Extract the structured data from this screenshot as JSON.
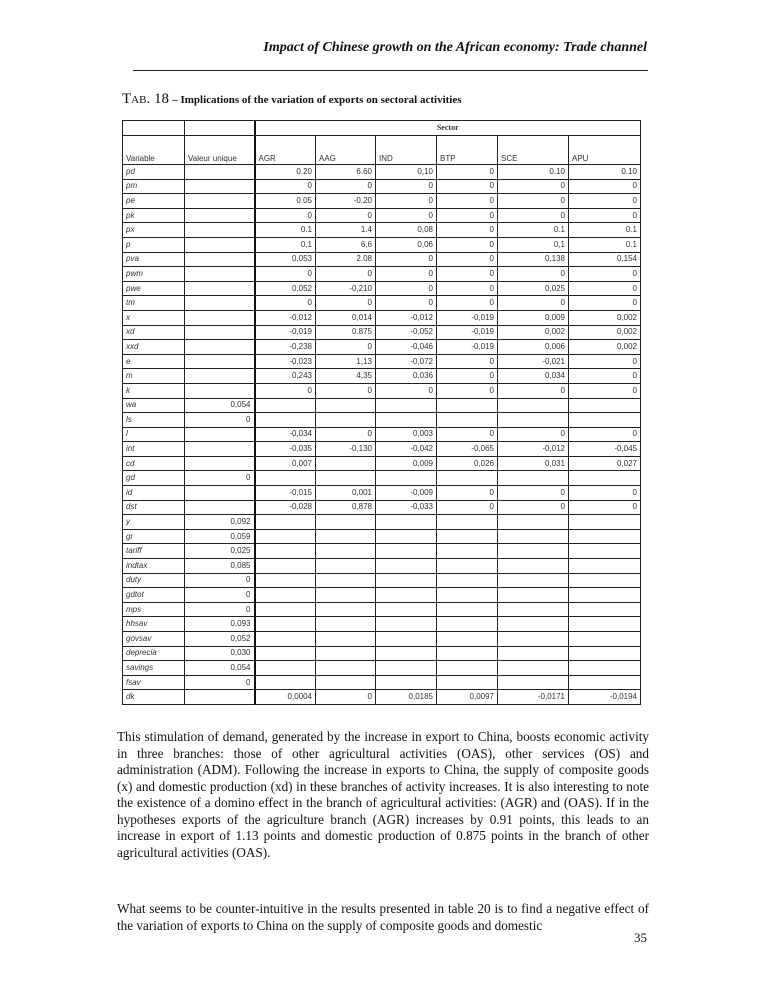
{
  "running_head": "Impact of Chinese growth on the African economy: Trade channel",
  "caption": {
    "tab": "Tab. 18",
    "text": "– Implications of the variation of exports on sectoral activities"
  },
  "table": {
    "group_header": "Sector",
    "headers": [
      "Variable",
      "Valeur unique",
      "AGR",
      "AAG",
      "IND",
      "BTP",
      "SCE",
      "APU"
    ],
    "rows": [
      [
        "pd",
        "",
        "0.20",
        "6.60",
        "0,10",
        "0",
        "0,10",
        "0.10"
      ],
      [
        "pm",
        "",
        "0",
        "0",
        "0",
        "0",
        "0",
        "0"
      ],
      [
        "pe",
        "",
        "0.05",
        "-0.20",
        "0",
        "0",
        "0",
        "0"
      ],
      [
        "pk",
        "",
        "0",
        "0",
        "0",
        "0",
        "0",
        "0"
      ],
      [
        "px",
        "",
        "0.1",
        "1.4",
        "0,08",
        "0",
        "0.1",
        "0.1"
      ],
      [
        "p",
        "",
        "0,1",
        "6,6",
        "0,06",
        "0",
        "0,1",
        "0.1"
      ],
      [
        "pva",
        "",
        "0,053",
        "2.08",
        "0",
        "0",
        "0,138",
        "0,154"
      ],
      [
        "pwm",
        "",
        "0",
        "0",
        "0",
        "0",
        "0",
        "0"
      ],
      [
        "pwe",
        "",
        "0,052",
        "-0,210",
        "0",
        "0",
        "0,025",
        "0"
      ],
      [
        "tm",
        "",
        "0",
        "0",
        "0",
        "0",
        "0",
        "0"
      ],
      [
        "x",
        "",
        "-0,012",
        "0,014",
        "-0,012",
        "-0,019",
        "0,009",
        "0,002"
      ],
      [
        "xd",
        "",
        "-0,019",
        "0.875",
        "-0,052",
        "-0,019",
        "0,002",
        "0,002"
      ],
      [
        "xxd",
        "",
        "-0,238",
        "0",
        "-0,046",
        "-0,019",
        "0,006",
        "0,002"
      ],
      [
        "e",
        "",
        "-0,023",
        "1,13",
        "-0,072",
        "0",
        "-0,021",
        "0"
      ],
      [
        "m",
        "",
        "0,243",
        "4,35",
        "0,036",
        "0",
        "0,034",
        "0"
      ],
      [
        "k",
        "",
        "0",
        "0",
        "0",
        "0",
        "0",
        "0"
      ],
      [
        "wa",
        "0,054",
        "",
        "",
        "",
        "",
        "",
        ""
      ],
      [
        "ls",
        "0",
        "",
        "",
        "",
        "",
        "",
        ""
      ],
      [
        "l",
        "",
        "-0,034",
        "0",
        "0,003",
        "0",
        "0",
        "0"
      ],
      [
        "int",
        "",
        "-0,035",
        "-0,130",
        "-0,042",
        "-0,065",
        "-0,012",
        "-0,045"
      ],
      [
        "cd",
        "",
        "0,007",
        "",
        "0,009",
        "0,026",
        "0,031",
        "0,027"
      ],
      [
        "gd",
        "0",
        "",
        "",
        "",
        "",
        "",
        ""
      ],
      [
        "id",
        "",
        "-0,015",
        "0,001",
        "-0,009",
        "0",
        "0",
        "0"
      ],
      [
        "dst",
        "",
        "-0,028",
        "0,878",
        "-0,033",
        "0",
        "0",
        "0"
      ],
      [
        "y",
        "0,092",
        "",
        "",
        "",
        "",
        "",
        ""
      ],
      [
        "gr",
        "0,059",
        "",
        "",
        "",
        "",
        "",
        ""
      ],
      [
        "tariff",
        "0,025",
        "",
        "",
        "",
        "",
        "",
        ""
      ],
      [
        "indtax",
        "0,085",
        "",
        "",
        "",
        "",
        "",
        ""
      ],
      [
        "duty",
        "0",
        "",
        "",
        "",
        "",
        "",
        ""
      ],
      [
        "gdtot",
        "0",
        "",
        "",
        "",
        "",
        "",
        ""
      ],
      [
        "mps",
        "0",
        "",
        "",
        "",
        "",
        "",
        ""
      ],
      [
        "hhsav",
        "0,093",
        "",
        "",
        "",
        "",
        "",
        ""
      ],
      [
        "govsav",
        "0,052",
        "",
        "",
        "",
        "",
        "",
        ""
      ],
      [
        "deprecia",
        "0,030",
        "",
        "",
        "",
        "",
        "",
        ""
      ],
      [
        "savings",
        "0,054",
        "",
        "",
        "",
        "",
        "",
        ""
      ],
      [
        "fsav",
        "0",
        "",
        "",
        "",
        "",
        "",
        ""
      ],
      [
        "dk",
        "",
        "0,0004",
        "0",
        "0,0185",
        "0,0097",
        "-0,0171",
        "-0,0194"
      ]
    ]
  },
  "paragraphs": [
    "This stimulation of demand, generated by the increase in export to China, boosts economic activity in three branches: those of other agricultural activities (OAS), other services (OS) and administration (ADM). Following the increase in exports to China, the supply of composite goods (x) and domestic production (xd) in these branches of activity increases. It is also interesting to note the existence of a domino effect in the branch of agricultural activities: (AGR) and (OAS). If in the hypotheses exports of the agriculture branch (AGR) increases by 0.91 points, this leads to an increase in export of 1.13 points and domestic production of 0.875 points in the branch of other agricultural activities (OAS).",
    "What seems to be counter-intuitive in the results presented in table 20 is to find a negative effect of the variation of exports to China on the supply of composite goods and domestic"
  ],
  "page_number": "35"
}
